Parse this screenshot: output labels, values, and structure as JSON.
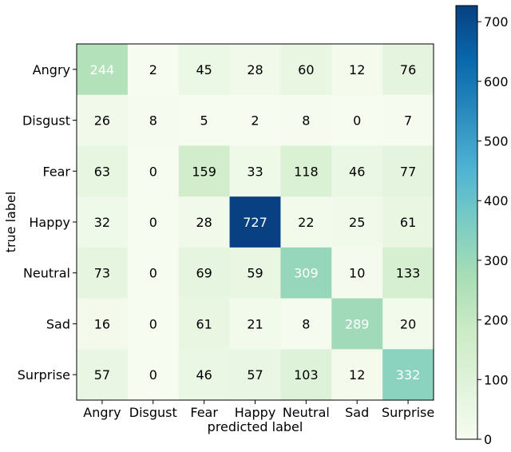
{
  "chart_data": {
    "type": "heatmap",
    "title": "",
    "xlabel": "predicted label",
    "ylabel": "true label",
    "x_categories": [
      "Angry",
      "Disgust",
      "Fear",
      "Happy",
      "Neutral",
      "Sad",
      "Surprise"
    ],
    "y_categories": [
      "Angry",
      "Disgust",
      "Fear",
      "Happy",
      "Neutral",
      "Sad",
      "Surprise"
    ],
    "values": [
      [
        244,
        2,
        45,
        28,
        60,
        12,
        76
      ],
      [
        26,
        8,
        5,
        2,
        8,
        0,
        7
      ],
      [
        63,
        0,
        159,
        33,
        118,
        46,
        77
      ],
      [
        32,
        0,
        28,
        727,
        22,
        25,
        61
      ],
      [
        73,
        0,
        69,
        59,
        309,
        10,
        133
      ],
      [
        16,
        0,
        61,
        21,
        8,
        289,
        20
      ],
      [
        57,
        0,
        46,
        57,
        103,
        12,
        332
      ]
    ],
    "colormap": "GnBu",
    "vmin": 0,
    "vmax": 727,
    "colorbar_ticks": [
      0,
      100,
      200,
      300,
      400,
      500,
      600,
      700
    ],
    "grid": false
  }
}
